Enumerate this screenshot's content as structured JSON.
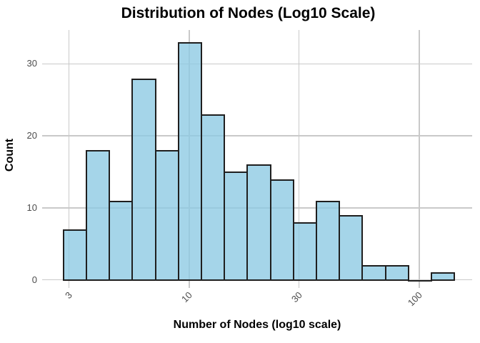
{
  "chart_data": {
    "type": "bar",
    "subtype": "histogram",
    "title": "Distribution of Nodes (Log10 Scale)",
    "xlabel": "Number of Nodes (log10 scale)",
    "ylabel": "Count",
    "x_scale": "log10",
    "x_ticks": [
      3,
      10,
      30,
      100
    ],
    "y_ticks": [
      0,
      10,
      20,
      30
    ],
    "y_range": [
      0,
      34.7
    ],
    "x_range_log10": [
      0.36,
      2.23
    ],
    "grid": "on",
    "legend": "none",
    "bin_width_log10": 0.1,
    "bin_edges": [
      2.82,
      3.55,
      4.47,
      5.62,
      7.08,
      8.91,
      11.22,
      14.13,
      17.78,
      22.39,
      28.18,
      35.48,
      44.67,
      56.23,
      70.79,
      89.13,
      112.2,
      141.25
    ],
    "counts": [
      7,
      18,
      11,
      28,
      18,
      33,
      23,
      15,
      16,
      14,
      8,
      11,
      9,
      2,
      2,
      0,
      1
    ],
    "total_observations": 216,
    "colors": {
      "bar_fill": "rgba(142, 203, 227, 0.8)",
      "bar_fill_hex_over_white": "#A5D5E8",
      "bar_border": "#1F1F1F",
      "grid": "#C9C9C9",
      "tick_label": "#4D4D4D",
      "text": "#000000",
      "background": "#FFFFFF"
    }
  }
}
